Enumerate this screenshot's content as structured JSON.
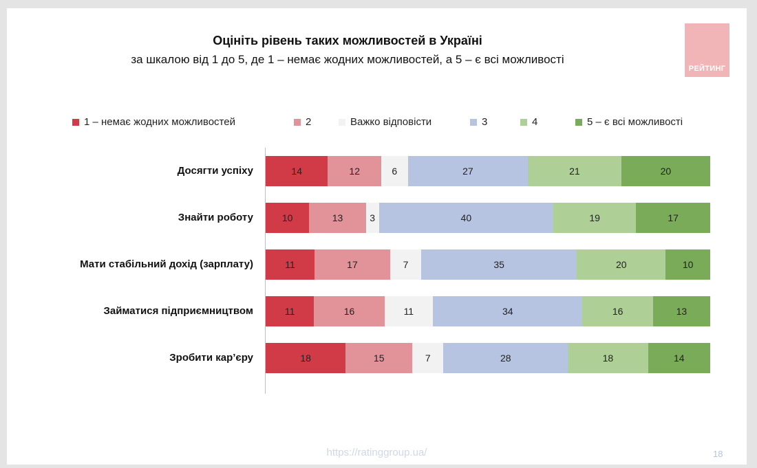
{
  "logo": {
    "text": "РЕЙТИНГ"
  },
  "footer": {
    "url": "https://ratinggroup.ua/",
    "page": "18"
  },
  "chart_data": {
    "type": "bar",
    "orientation": "horizontal",
    "stacked": true,
    "title": "Оцініть рівень таких можливостей в Україні",
    "subtitle": "за шкалою від 1 до 5, де 1 – немає жодних можливостей, а 5 – є всі можливості",
    "legend_position": "top",
    "categories": [
      "Досягти успіху",
      "Знайти роботу",
      "Мати стабільний дохід (зарплату)",
      "Займатися підприємництвом",
      "Зробити кар’єру"
    ],
    "series": [
      {
        "name": "1 – немає жодних можливостей",
        "color": "#d13b47",
        "values": [
          14,
          10,
          11,
          11,
          18
        ]
      },
      {
        "name": "2",
        "color": "#e2939a",
        "values": [
          12,
          13,
          17,
          16,
          15
        ]
      },
      {
        "name": "Важко відповісти",
        "color": "#f2f2f2",
        "values": [
          6,
          3,
          7,
          11,
          7
        ]
      },
      {
        "name": "3",
        "color": "#b6c4e2",
        "values": [
          27,
          40,
          35,
          34,
          28
        ]
      },
      {
        "name": "4",
        "color": "#aed096",
        "values": [
          21,
          19,
          20,
          16,
          18
        ]
      },
      {
        "name": "5 – є всі можливості",
        "color": "#79ab58",
        "values": [
          20,
          17,
          10,
          13,
          14
        ]
      }
    ]
  }
}
